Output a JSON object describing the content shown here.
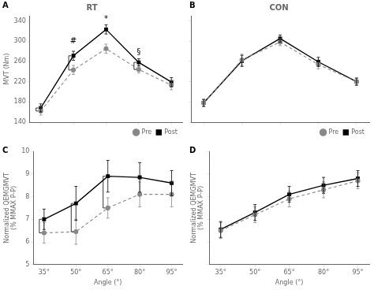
{
  "chart_data": [
    {
      "type": "line",
      "title": "RT",
      "ylabel": "MVT (Nm)",
      "x": [
        35,
        50,
        65,
        80,
        95
      ],
      "series": [
        {
          "name": "Pre",
          "color": "#888888",
          "marker": "circle",
          "line_style": "dashed",
          "values": [
            162,
            243,
            285,
            244,
            213
          ],
          "errors": [
            8,
            9,
            9,
            7,
            9
          ]
        },
        {
          "name": "Post",
          "color": "#000000",
          "marker": "square",
          "line_style": "solid",
          "values": [
            168,
            271,
            323,
            258,
            219
          ],
          "errors": [
            8,
            9,
            9,
            7,
            9
          ]
        }
      ],
      "xlim": [
        30,
        100
      ],
      "xticks": [
        35,
        50,
        65,
        80,
        95
      ],
      "ylim": [
        140,
        350
      ],
      "yticks": [
        140,
        180,
        220,
        260,
        300,
        340
      ],
      "grid": false,
      "legend": "lower right",
      "tick_labels": "y",
      "annotations": [
        {
          "text": "A"
        },
        {
          "text": "#",
          "x": 50,
          "y": 292
        },
        {
          "text": "*",
          "x": 65,
          "y": 336
        },
        {
          "text": "§",
          "x": 80,
          "y": 270
        },
        {
          "x": 35,
          "y": [
            162,
            168
          ]
        },
        {
          "x": 50,
          "y": [
            243,
            271
          ]
        },
        {
          "x": 80,
          "y": [
            244,
            258
          ]
        }
      ]
    },
    {
      "type": "line",
      "title": "CON",
      "x": [
        35,
        50,
        65,
        80,
        95
      ],
      "series": [
        {
          "name": "Pre",
          "color": "#888888",
          "marker": "circle",
          "line_style": "dashed",
          "values": [
            178,
            263,
            298,
            254,
            220
          ],
          "errors": [
            7,
            11,
            7,
            9,
            7
          ]
        },
        {
          "name": "Post",
          "color": "#000000",
          "marker": "square",
          "line_style": "solid",
          "values": [
            178,
            261,
            305,
            259,
            220
          ],
          "errors": [
            7,
            11,
            7,
            9,
            7
          ]
        }
      ],
      "xlim": [
        30,
        100
      ],
      "xticks": [
        35,
        50,
        65,
        80,
        95
      ],
      "ylim": [
        140,
        350
      ],
      "yticks": [
        140,
        180,
        220,
        260,
        300,
        340
      ],
      "grid": false,
      "legend": "lower right",
      "tick_labels": false,
      "annotations": [
        {
          "text": "B"
        }
      ]
    },
    {
      "type": "line",
      "xlabel": "Angle (°)",
      "ylabel": "Normalized QEMGMVT\n(% MMAX P-P)",
      "x": [
        35,
        50,
        65,
        80,
        95
      ],
      "series": [
        {
          "name": "Pre",
          "color": "#888888",
          "marker": "circle",
          "line_style": "dashed",
          "values": [
            6.4,
            6.45,
            7.5,
            8.1,
            8.1
          ],
          "errors": [
            0.45,
            0.55,
            0.45,
            0.55,
            0.55
          ]
        },
        {
          "name": "Post",
          "color": "#000000",
          "marker": "square",
          "line_style": "solid",
          "values": [
            7.0,
            7.7,
            8.9,
            8.85,
            8.6
          ],
          "errors": [
            0.45,
            0.75,
            0.7,
            0.65,
            0.55
          ]
        }
      ],
      "xlim": [
        30,
        100
      ],
      "xticks": [
        {
          "value": 35,
          "label": "35°"
        },
        {
          "value": 50,
          "label": "50°"
        },
        {
          "value": 65,
          "label": "65°"
        },
        {
          "value": 80,
          "label": "80°"
        },
        {
          "value": 95,
          "label": "95°"
        }
      ],
      "ylim": [
        5,
        10
      ],
      "yticks": [
        5,
        6,
        7,
        8,
        9,
        10
      ],
      "grid": false,
      "annotations": [
        {
          "text": "C"
        },
        {
          "x": 35,
          "y": [
            6.4,
            7.0
          ]
        },
        {
          "x": 50,
          "y": [
            6.45,
            7.7
          ]
        },
        {
          "x": 65,
          "y": [
            7.5,
            8.9
          ]
        }
      ]
    },
    {
      "type": "line",
      "xlabel": "Angle (°)",
      "ylabel": "Normalized QEMGMVT\n(% MMAX P-P)",
      "x": [
        35,
        50,
        65,
        80,
        95
      ],
      "series": [
        {
          "name": "Pre",
          "color": "#888888",
          "marker": "circle",
          "line_style": "dashed",
          "values": [
            6.5,
            7.2,
            7.9,
            8.3,
            8.7
          ],
          "errors": [
            0.35,
            0.35,
            0.35,
            0.35,
            0.35
          ]
        },
        {
          "name": "Post",
          "color": "#000000",
          "marker": "square",
          "line_style": "solid",
          "values": [
            6.55,
            7.3,
            8.1,
            8.5,
            8.8
          ],
          "errors": [
            0.35,
            0.35,
            0.35,
            0.35,
            0.35
          ]
        }
      ],
      "xlim": [
        30,
        100
      ],
      "xticks": [
        {
          "value": 35,
          "label": "35°"
        },
        {
          "value": 50,
          "label": "50°"
        },
        {
          "value": 65,
          "label": "65°"
        },
        {
          "value": 80,
          "label": "80°"
        },
        {
          "value": 95,
          "label": "95°"
        }
      ],
      "ylim": [
        5,
        10
      ],
      "yticks": [
        5,
        6,
        7,
        8,
        9,
        10
      ],
      "grid": false,
      "tick_labels": "x",
      "annotations": [
        {
          "text": "D"
        }
      ]
    }
  ]
}
